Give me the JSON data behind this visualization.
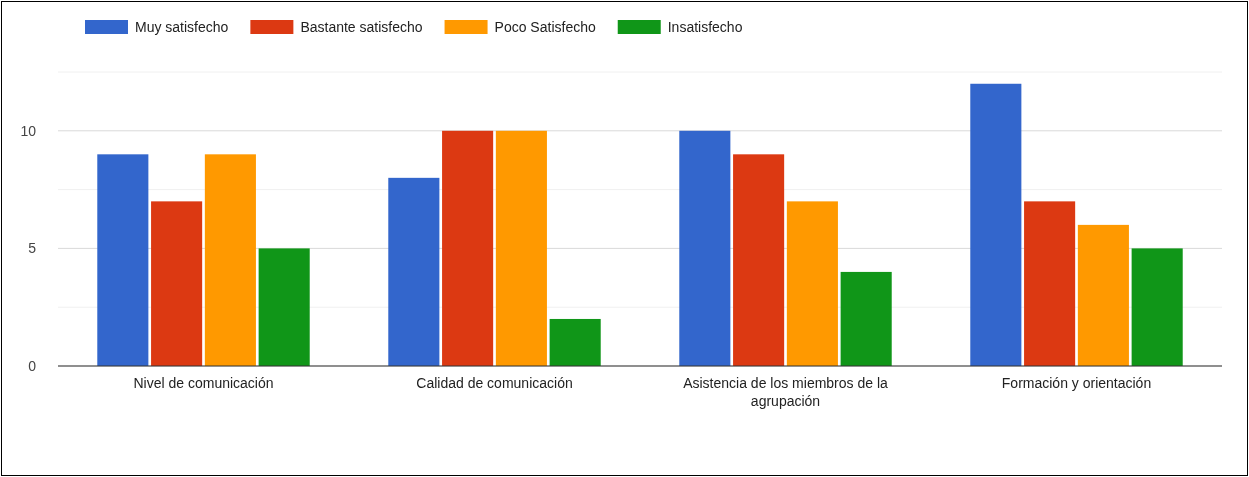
{
  "chart_data": {
    "type": "bar",
    "categories": [
      "Nivel de comunicación",
      "Calidad de comunicación",
      "Asistencia de los miembros de la agrupación",
      "Formación y orientación"
    ],
    "series": [
      {
        "name": "Muy satisfecho",
        "color": "#3366cc",
        "values": [
          9,
          8,
          10,
          12
        ]
      },
      {
        "name": "Bastante satisfecho",
        "color": "#dc3912",
        "values": [
          7,
          10,
          9,
          7
        ]
      },
      {
        "name": "Poco Satisfecho",
        "color": "#ff9900",
        "values": [
          9,
          10,
          7,
          6
        ]
      },
      {
        "name": "Insatisfecho",
        "color": "#109618",
        "values": [
          5,
          2,
          4,
          5
        ]
      }
    ],
    "ylim": [
      0,
      12.5
    ],
    "yticks": [
      0,
      {
        "value": 2.5,
        "label": null
      },
      5,
      {
        "value": 7.5,
        "label": null
      },
      10,
      {
        "value": 12.5,
        "label": null
      }
    ],
    "grid": true,
    "legend": "top left"
  }
}
